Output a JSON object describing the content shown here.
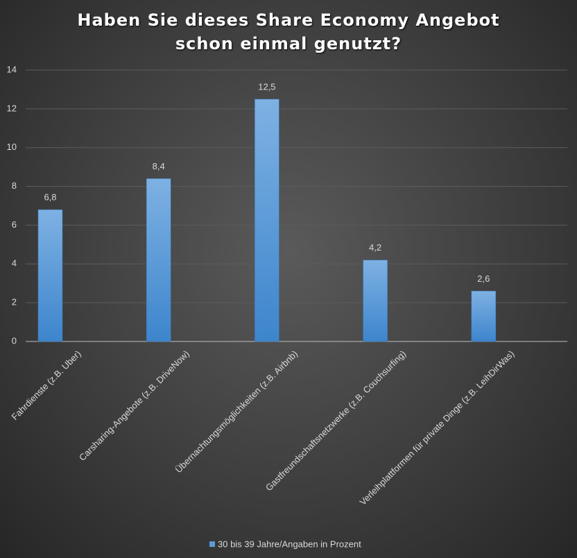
{
  "chart_data": {
    "type": "bar",
    "title": "Haben Sie dieses Share Economy Angebot schon einmal genutzt?",
    "categories": [
      "Fahrdienste (z.B. Uber)",
      "Carsharing-Angebote (z.B. DriveNow)",
      "Übernachtungsmöglichkeiten (z.B. Airbnb)",
      "Gastfreundschaftsnetzwerke (z.B. Couchsurfing)",
      "Verleihplattformen für private Dinge (z.B. LeihDirWas)"
    ],
    "series": [
      {
        "name": "30 bis 39 Jahre/Angaben in Prozent",
        "color": "#5b9bd5",
        "values": [
          6.8,
          8.4,
          12.5,
          4.2,
          2.6
        ],
        "value_labels": [
          "6,8",
          "8,4",
          "12,5",
          "4,2",
          "2,6"
        ]
      }
    ],
    "ylim": [
      0,
      14
    ],
    "yticks": [
      0,
      2,
      4,
      6,
      8,
      10,
      12,
      14
    ],
    "grid": true,
    "legend": "bottom"
  }
}
